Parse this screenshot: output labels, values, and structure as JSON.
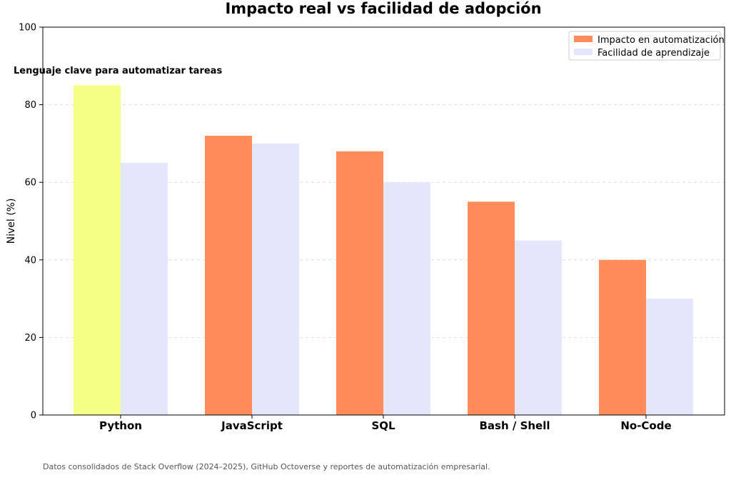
{
  "chart_data": {
    "type": "bar",
    "title": "Impacto real vs facilidad de adopción",
    "ylabel": "Nivel (%)",
    "xlabel": "",
    "ylim": [
      0,
      100
    ],
    "yticks": [
      0,
      20,
      40,
      60,
      80,
      100
    ],
    "grid": true,
    "categories": [
      "Python",
      "JavaScript",
      "SQL",
      "Bash / Shell",
      "No-Code"
    ],
    "series": [
      {
        "name": "Impacto en automatización",
        "color": "#ff8c5a",
        "values": [
          85,
          72,
          68,
          55,
          40
        ]
      },
      {
        "name": "Facilidad de aprendizaje",
        "color": "#e4e7fc",
        "values": [
          65,
          70,
          60,
          45,
          30
        ]
      }
    ],
    "highlight": {
      "category_index": 0,
      "series_index": 0,
      "color": "#f5ff85"
    },
    "annotation": "Lenguaje clave para automatizar tareas",
    "legend_position": "top-right"
  },
  "footnote": "Datos consolidados de Stack Overflow (2024–2025), GitHub Octoverse y reportes de automatización empresarial."
}
